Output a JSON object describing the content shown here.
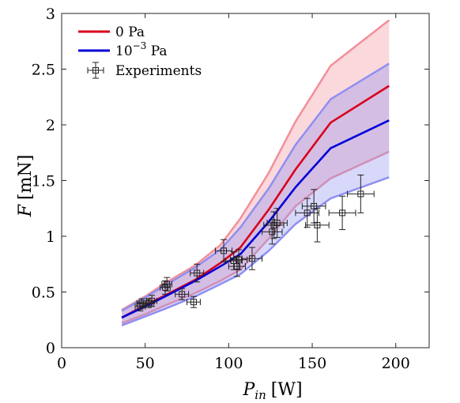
{
  "chart_data": {
    "type": "line",
    "title": "",
    "xlabel": "P_in [W]",
    "xlabel_parts": {
      "symbol": "P",
      "subscript": "in",
      "unit": "[W]"
    },
    "ylabel": "F [mN]",
    "ylabel_parts": {
      "symbol": "F",
      "unit": "[mN]"
    },
    "xlim": [
      0,
      220
    ],
    "ylim": [
      0,
      3
    ],
    "xticks": [
      "0",
      "50",
      "100",
      "150",
      "200"
    ],
    "yticks": [
      "0",
      "0.5",
      "1",
      "1.5",
      "2",
      "2.5",
      "3"
    ],
    "grid": false,
    "legend_position": "top-left",
    "series": [
      {
        "name": "0 Pa",
        "color": "#d9001b",
        "band_color": "#f28f9a",
        "x": [
          36,
          50,
          62,
          80,
          95,
          107,
          124,
          140,
          161,
          196
        ],
        "y": [
          0.27,
          0.38,
          0.47,
          0.61,
          0.76,
          0.9,
          1.24,
          1.6,
          2.02,
          2.35
        ],
        "upper": [
          0.34,
          0.46,
          0.58,
          0.74,
          0.92,
          1.16,
          1.57,
          2.03,
          2.53,
          2.94
        ],
        "lower": [
          0.22,
          0.3,
          0.38,
          0.49,
          0.6,
          0.7,
          0.98,
          1.27,
          1.52,
          1.76
        ]
      },
      {
        "name": "10^-3 Pa",
        "name_parts": {
          "base": "10",
          "exp": "−3",
          "unit": " Pa"
        },
        "color": "#0000d9",
        "band_color": "#8f8ff2",
        "x": [
          36,
          50,
          62,
          80,
          95,
          107,
          124,
          140,
          161,
          196
        ],
        "y": [
          0.27,
          0.37,
          0.46,
          0.6,
          0.73,
          0.84,
          1.13,
          1.44,
          1.79,
          2.04
        ],
        "upper": [
          0.33,
          0.45,
          0.56,
          0.72,
          0.88,
          1.08,
          1.43,
          1.82,
          2.23,
          2.55
        ],
        "lower": [
          0.2,
          0.28,
          0.35,
          0.46,
          0.57,
          0.66,
          0.87,
          1.11,
          1.34,
          1.53
        ]
      }
    ],
    "experiments": {
      "name": "Experiments",
      "points": [
        {
          "x": 47,
          "y": 0.37,
          "xerr": 3,
          "yerr": 0.04
        },
        {
          "x": 48,
          "y": 0.4,
          "xerr": 3,
          "yerr": 0.04
        },
        {
          "x": 52,
          "y": 0.4,
          "xerr": 3,
          "yerr": 0.04
        },
        {
          "x": 54,
          "y": 0.42,
          "xerr": 3,
          "yerr": 0.05
        },
        {
          "x": 63,
          "y": 0.57,
          "xerr": 3,
          "yerr": 0.06
        },
        {
          "x": 62,
          "y": 0.54,
          "xerr": 3,
          "yerr": 0.06
        },
        {
          "x": 72,
          "y": 0.48,
          "xerr": 4,
          "yerr": 0.05
        },
        {
          "x": 79,
          "y": 0.41,
          "xerr": 4,
          "yerr": 0.05
        },
        {
          "x": 81,
          "y": 0.67,
          "xerr": 4,
          "yerr": 0.08
        },
        {
          "x": 97,
          "y": 0.87,
          "xerr": 5,
          "yerr": 0.1
        },
        {
          "x": 103,
          "y": 0.78,
          "xerr": 5,
          "yerr": 0.08
        },
        {
          "x": 105,
          "y": 0.73,
          "xerr": 5,
          "yerr": 0.09
        },
        {
          "x": 106,
          "y": 0.79,
          "xerr": 5,
          "yerr": 0.09
        },
        {
          "x": 114,
          "y": 0.8,
          "xerr": 6,
          "yerr": 0.1
        },
        {
          "x": 126,
          "y": 1.04,
          "xerr": 6,
          "yerr": 0.11
        },
        {
          "x": 127,
          "y": 1.1,
          "xerr": 6,
          "yerr": 0.12
        },
        {
          "x": 129,
          "y": 1.12,
          "xerr": 6,
          "yerr": 0.13
        },
        {
          "x": 147,
          "y": 1.21,
          "xerr": 7,
          "yerr": 0.13
        },
        {
          "x": 151,
          "y": 1.27,
          "xerr": 7,
          "yerr": 0.15
        },
        {
          "x": 153,
          "y": 1.1,
          "xerr": 7,
          "yerr": 0.15
        },
        {
          "x": 168,
          "y": 1.21,
          "xerr": 8,
          "yerr": 0.15
        },
        {
          "x": 179,
          "y": 1.38,
          "xerr": 8,
          "yerr": 0.17
        }
      ]
    }
  }
}
